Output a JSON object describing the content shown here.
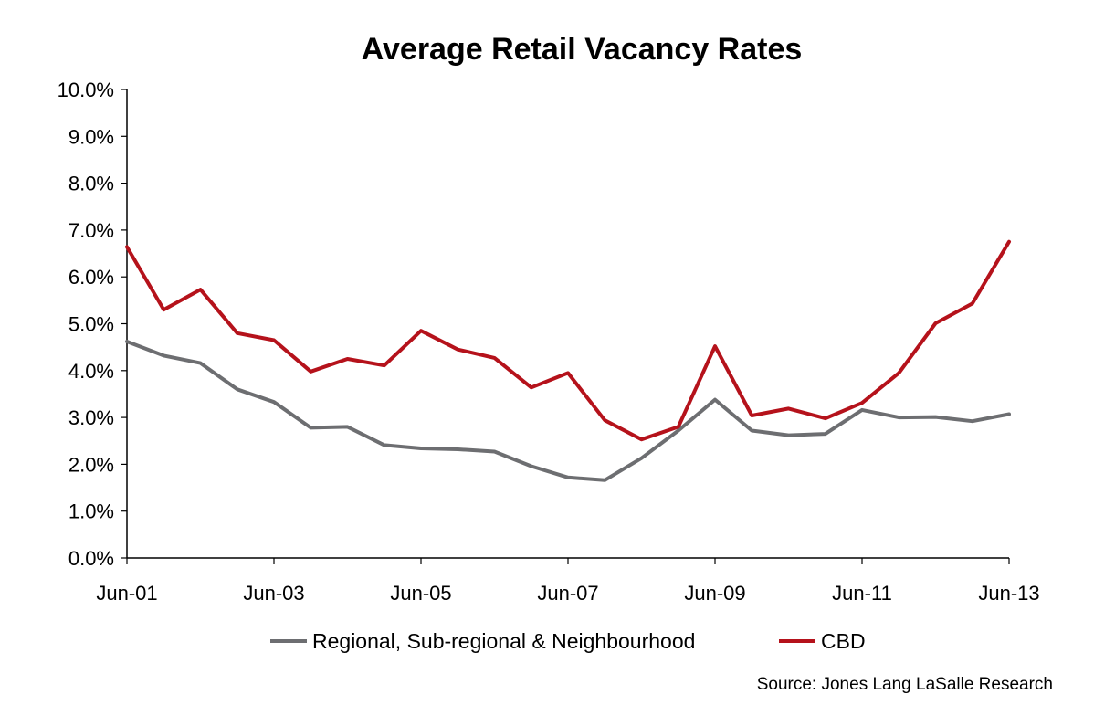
{
  "chart_data": {
    "type": "line",
    "title": "Average Retail Vacancy Rates",
    "xlabel": "",
    "ylabel": "",
    "ylim": [
      0,
      10
    ],
    "y_ticks": [
      "0.0%",
      "1.0%",
      "2.0%",
      "3.0%",
      "4.0%",
      "5.0%",
      "6.0%",
      "7.0%",
      "8.0%",
      "9.0%",
      "10.0%"
    ],
    "x_tick_labels": [
      "Jun-01",
      "Jun-03",
      "Jun-05",
      "Jun-07",
      "Jun-09",
      "Jun-11",
      "Jun-13"
    ],
    "x": [
      "Jun-01",
      "Dec-01",
      "Jun-02",
      "Dec-02",
      "Jun-03",
      "Dec-03",
      "Jun-04",
      "Dec-04",
      "Jun-05",
      "Dec-05",
      "Jun-06",
      "Dec-06",
      "Jun-07",
      "Dec-07",
      "Jun-08",
      "Dec-08",
      "Jun-09",
      "Dec-09",
      "Jun-10",
      "Dec-10",
      "Jun-11",
      "Dec-11",
      "Jun-12",
      "Dec-12",
      "Jun-13"
    ],
    "grid": false,
    "legend_position": "bottom",
    "series": [
      {
        "name": "Regional, Sub-regional & Neighbourhood",
        "color": "#6d6e71",
        "values": [
          4.62,
          4.32,
          4.16,
          3.6,
          3.33,
          2.78,
          2.8,
          2.41,
          2.34,
          2.32,
          2.27,
          1.96,
          1.72,
          1.66,
          2.13,
          2.72,
          3.38,
          2.72,
          2.62,
          2.65,
          3.16,
          3.0,
          3.01,
          2.92,
          3.07
        ]
      },
      {
        "name": "CBD",
        "color": "#b5121b",
        "values": [
          6.64,
          5.3,
          5.73,
          4.8,
          4.65,
          3.98,
          4.25,
          4.11,
          4.85,
          4.45,
          4.27,
          3.64,
          3.95,
          2.94,
          2.53,
          2.8,
          4.52,
          3.04,
          3.19,
          2.98,
          3.31,
          3.95,
          5.01,
          5.43,
          6.75
        ]
      }
    ]
  },
  "source": "Source: Jones Lang LaSalle Research"
}
